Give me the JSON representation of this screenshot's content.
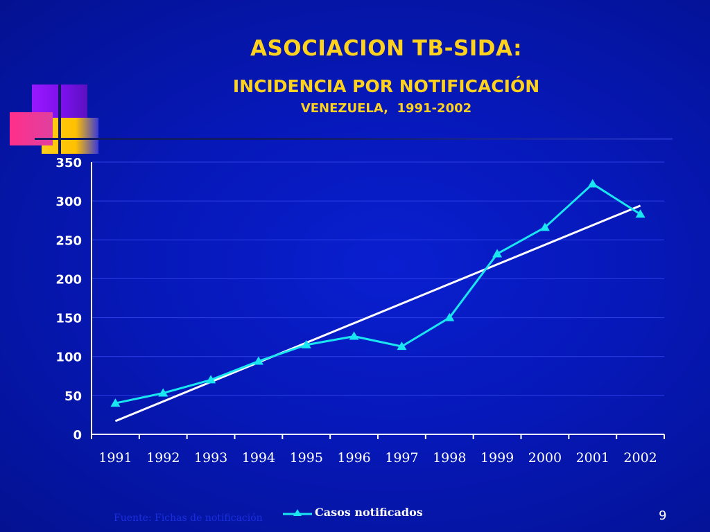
{
  "slide": {
    "title": "ASOCIACION TB-SIDA:",
    "subtitle": "INCIDENCIA POR NOTIFICACIÓN",
    "subtitle2": "VENEZUELA,  1991-2002",
    "footnote": "Fuente: Fichas de notificación",
    "page_number": "9"
  },
  "colors": {
    "title": "#ffd21e",
    "series": "#19e6f0",
    "trend": "#ffffff",
    "axis_text": "#ffffff"
  },
  "chart_data": {
    "type": "line",
    "categories": [
      "1991",
      "1992",
      "1993",
      "1994",
      "1995",
      "1996",
      "1997",
      "1998",
      "1999",
      "2000",
      "2001",
      "2002"
    ],
    "series": [
      {
        "name": "Casos notificados",
        "values": [
          40,
          53,
          70,
          94,
          115,
          126,
          113,
          150,
          232,
          266,
          322,
          283
        ],
        "marker": "triangle"
      }
    ],
    "trendline": {
      "start": 17,
      "end": 294
    },
    "ylim": [
      0,
      350
    ],
    "yticks": [
      0,
      50,
      100,
      150,
      200,
      250,
      300,
      350
    ],
    "grid": true,
    "legend": "bottom"
  }
}
